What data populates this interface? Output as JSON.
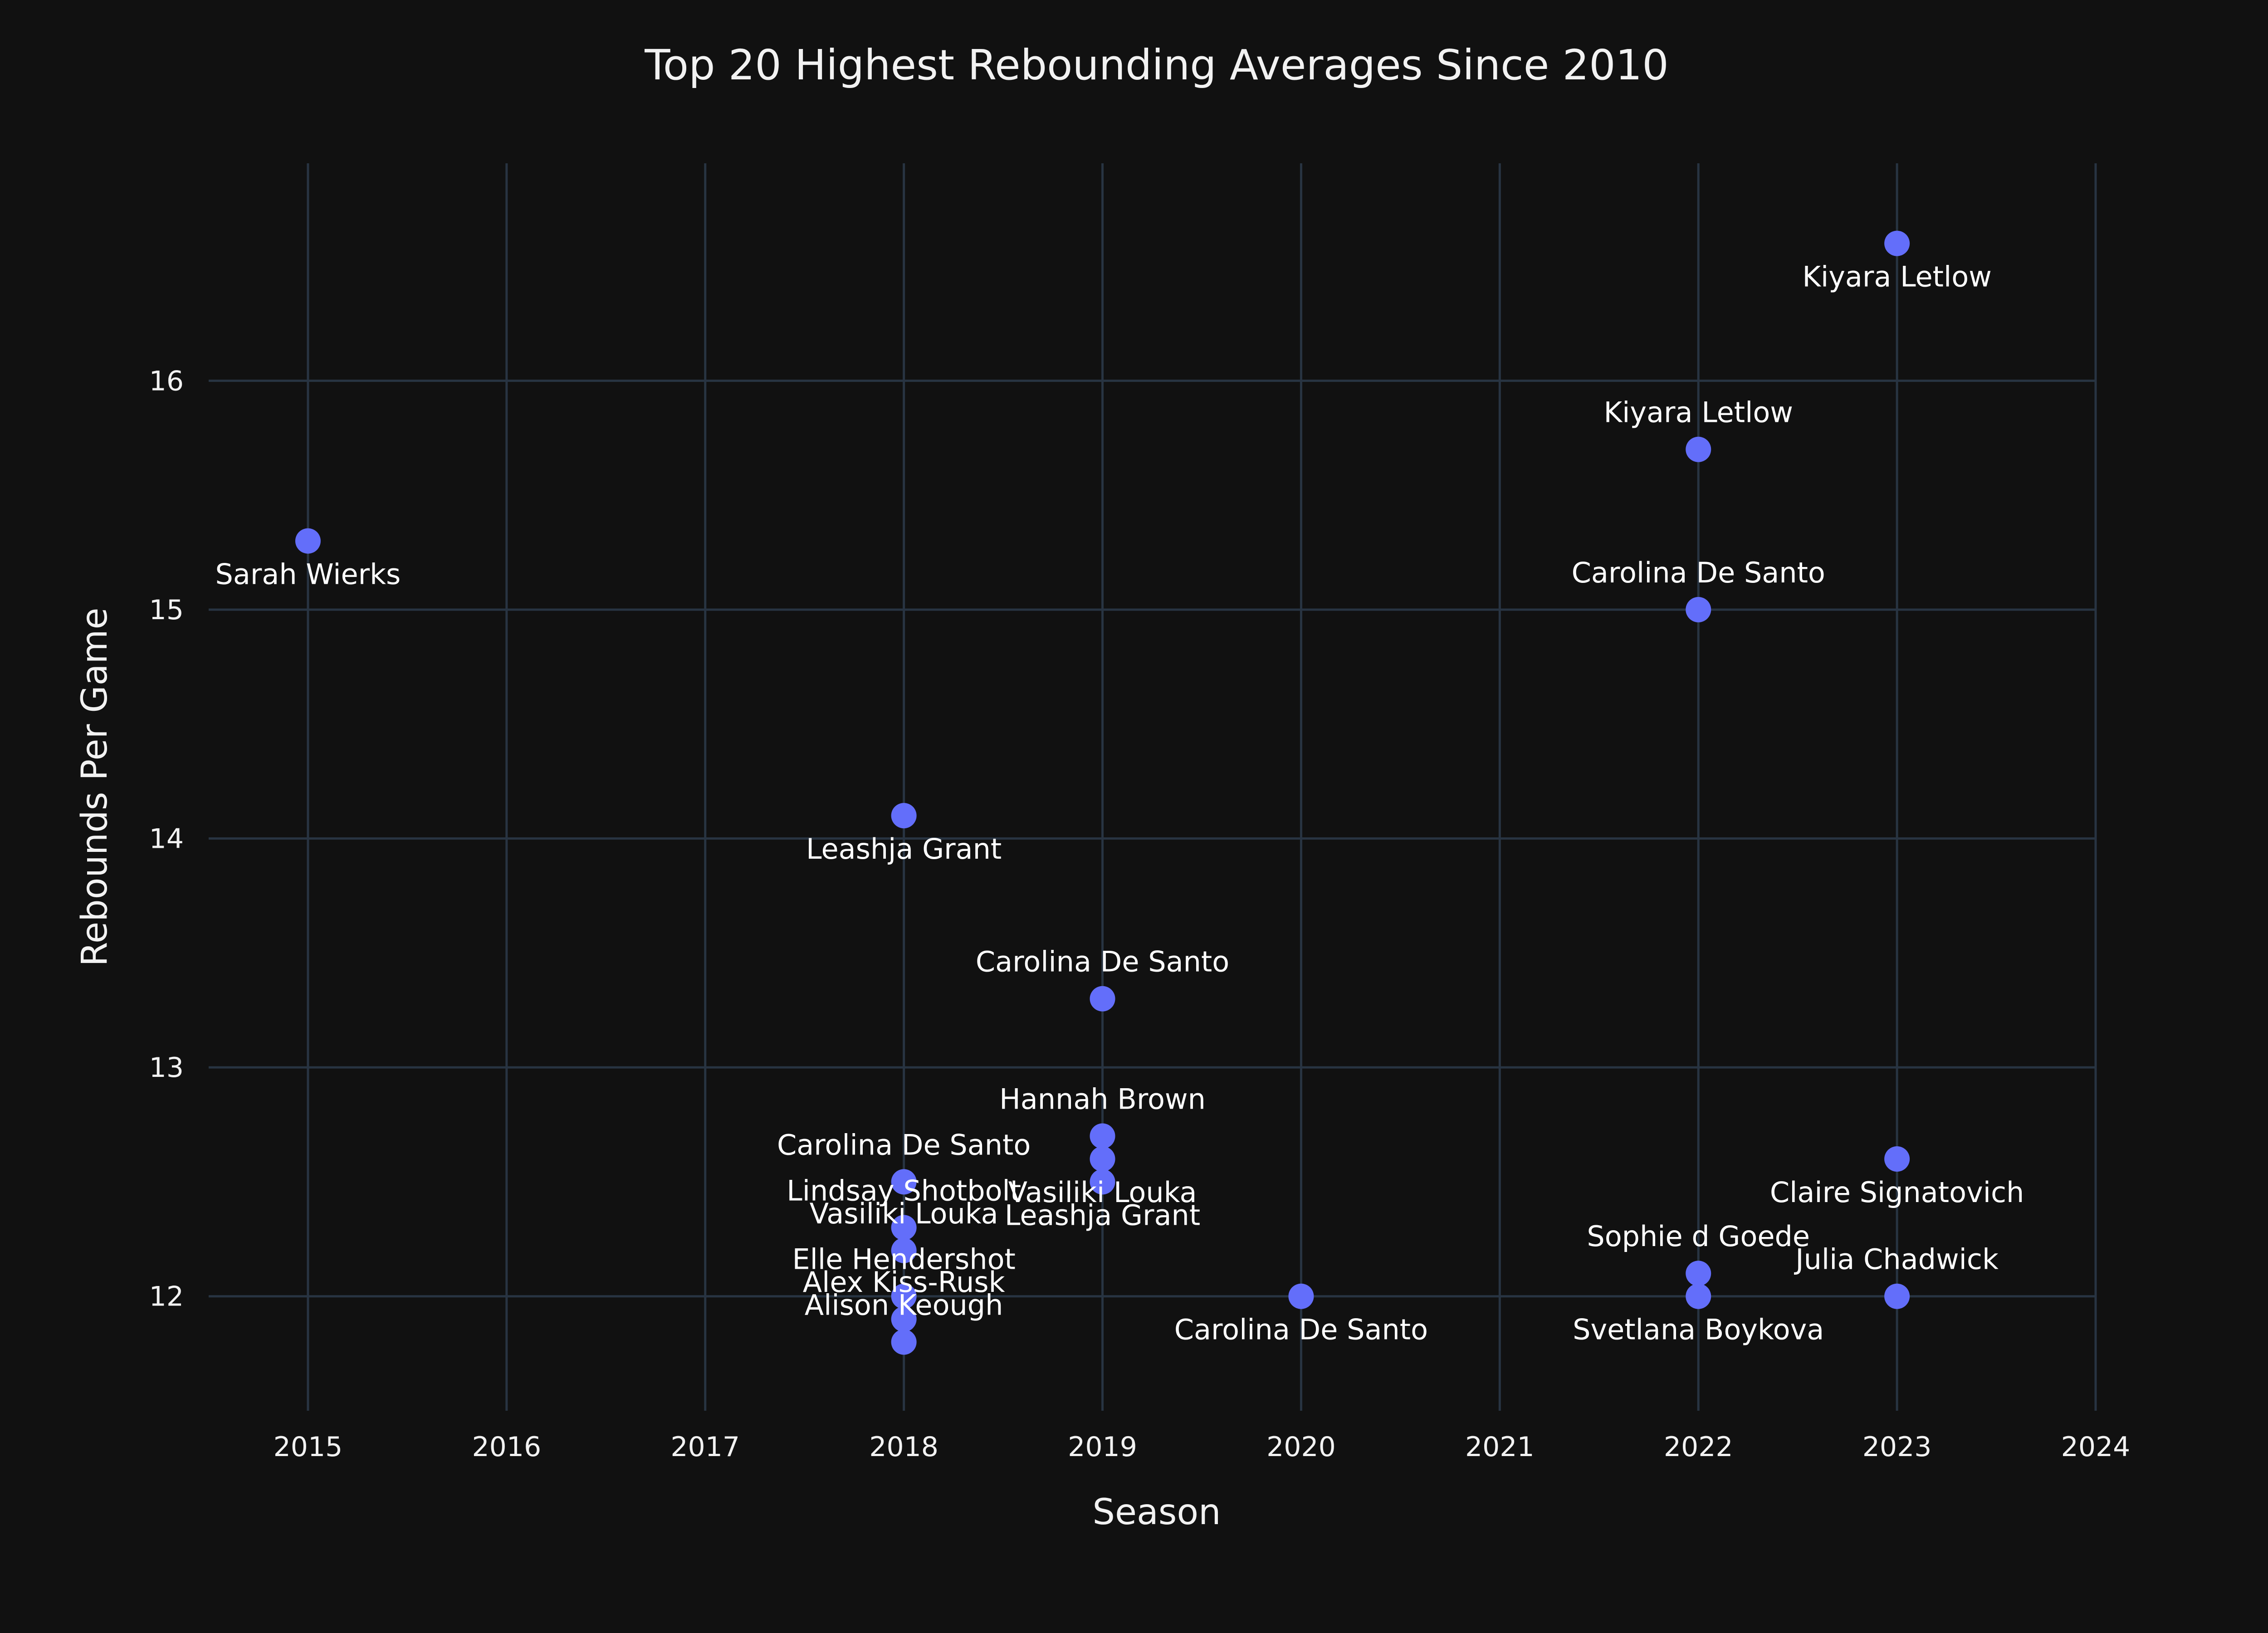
{
  "chart_data": {
    "type": "scatter",
    "title": "Top 20 Highest Rebounding Averages Since 2010",
    "xlabel": "Season",
    "ylabel": "Rebounds Per Game",
    "xlim": [
      2014.5,
      2024
    ],
    "ylim": [
      11.5,
      16.95
    ],
    "x_ticks": [
      "2015",
      "2016",
      "2017",
      "2018",
      "2019",
      "2020",
      "2021",
      "2022",
      "2023",
      "2024"
    ],
    "y_ticks": [
      "12",
      "13",
      "14",
      "15",
      "16"
    ],
    "grid": true,
    "marker_color": "#636efa",
    "background": "#111111",
    "points": [
      {
        "x": 2023,
        "y": 16.6,
        "label": "Kiyara Letlow",
        "pos": "below"
      },
      {
        "x": 2022,
        "y": 15.7,
        "label": "Kiyara Letlow",
        "pos": "above"
      },
      {
        "x": 2015,
        "y": 15.3,
        "label": "Sarah Wierks",
        "pos": "below"
      },
      {
        "x": 2022,
        "y": 15.0,
        "label": "Carolina De Santo",
        "pos": "above"
      },
      {
        "x": 2018,
        "y": 14.1,
        "label": "Leashja Grant",
        "pos": "below"
      },
      {
        "x": 2019,
        "y": 13.3,
        "label": "Carolina De Santo",
        "pos": "above"
      },
      {
        "x": 2019,
        "y": 12.7,
        "label": "Hannah Brown",
        "pos": "above"
      },
      {
        "x": 2023,
        "y": 12.6,
        "label": "Claire Signatovich",
        "pos": "below"
      },
      {
        "x": 2019,
        "y": 12.6,
        "label": "Vasiliki Louka",
        "pos": "below"
      },
      {
        "x": 2018,
        "y": 12.5,
        "label": "Carolina De Santo",
        "pos": "above"
      },
      {
        "x": 2019,
        "y": 12.5,
        "label": "Leashja Grant",
        "pos": "below"
      },
      {
        "x": 2018,
        "y": 12.3,
        "label": "Lindsay Shotbolt",
        "pos": "above"
      },
      {
        "x": 2018,
        "y": 12.2,
        "label": "Vasiliki Louka",
        "pos": "above"
      },
      {
        "x": 2022,
        "y": 12.1,
        "label": "Sophie d Goede",
        "pos": "above"
      },
      {
        "x": 2018,
        "y": 12.0,
        "label": "Elle Hendershot",
        "pos": "above"
      },
      {
        "x": 2020,
        "y": 12.0,
        "label": "Carolina De Santo",
        "pos": "below"
      },
      {
        "x": 2023,
        "y": 12.0,
        "label": "Julia Chadwick",
        "pos": "above"
      },
      {
        "x": 2022,
        "y": 12.0,
        "label": "Svetlana Boykova",
        "pos": "below"
      },
      {
        "x": 2018,
        "y": 11.9,
        "label": "Alex Kiss-Rusk",
        "pos": "above"
      },
      {
        "x": 2018,
        "y": 11.8,
        "label": "Alison Keough",
        "pos": "above"
      }
    ]
  }
}
